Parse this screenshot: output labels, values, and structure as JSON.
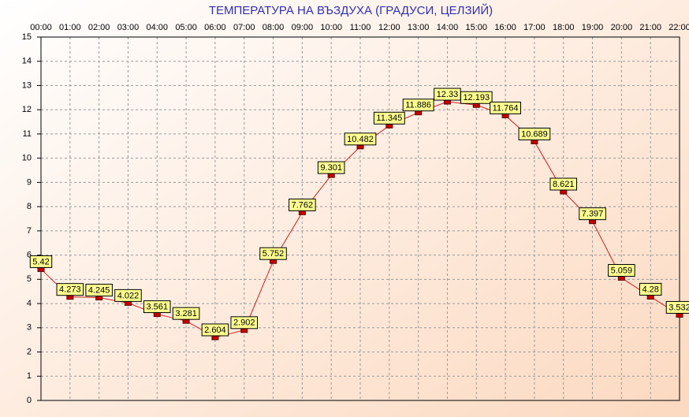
{
  "chart_data": {
    "type": "line",
    "title": "ТЕМПЕРАТУРА НА ВЪЗДУХА  (ГРАДУСИ, ЦЕЛЗИЙ)",
    "categories": [
      "00:00",
      "01:00",
      "02:00",
      "03:00",
      "04:00",
      "05:00",
      "06:00",
      "07:00",
      "08:00",
      "09:00",
      "10:00",
      "11:00",
      "12:00",
      "13:00",
      "14:00",
      "15:00",
      "16:00",
      "17:00",
      "18:00",
      "19:00",
      "20:00",
      "21:00",
      "22:00"
    ],
    "values": [
      5.42,
      4.273,
      4.245,
      4.022,
      3.561,
      3.281,
      2.604,
      2.902,
      5.752,
      7.762,
      9.301,
      10.482,
      11.345,
      11.886,
      12.33,
      12.193,
      11.764,
      10.689,
      8.621,
      7.397,
      5.059,
      4.28,
      3.532
    ],
    "color": "#cc2020",
    "ylim": [
      0,
      15
    ],
    "yticks": [
      0,
      1,
      2,
      3,
      4,
      5,
      6,
      7,
      8,
      9,
      10,
      11,
      12,
      13,
      14,
      15
    ],
    "grid": true
  }
}
